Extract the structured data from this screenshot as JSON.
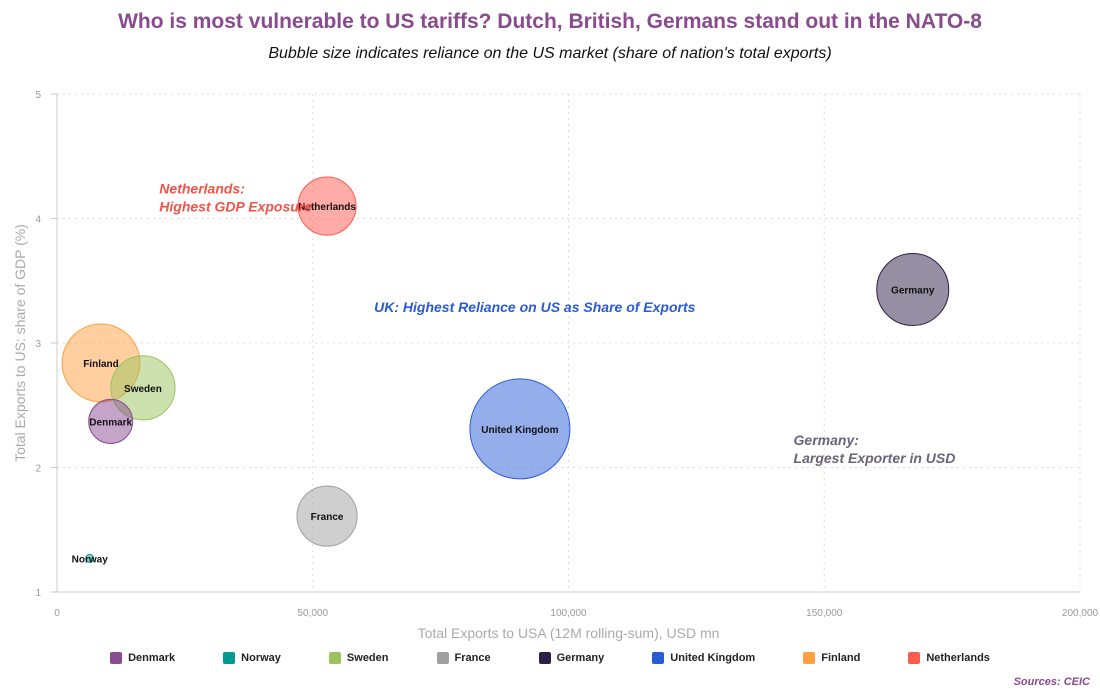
{
  "title": "Who is most vulnerable to US tariffs? Dutch, British, Germans stand out in the NATO-8",
  "subtitle": "Bubble size indicates reliance on the US market (share of nation's total exports)",
  "source": "Sources: CEIC",
  "chart_data": {
    "type": "scatter",
    "subtype": "bubble",
    "xlabel": "Total Exports to USA (12M rolling-sum), USD mn",
    "ylabel": "Total Exports to US: share of GDP (%)",
    "xlim": [
      0,
      200000
    ],
    "ylim": [
      1,
      5
    ],
    "xticks": [
      "0",
      "50,000",
      "100,000",
      "150,000",
      "200,000"
    ],
    "xtick_values": [
      0,
      50000,
      100000,
      150000,
      200000
    ],
    "yticks": [
      "1",
      "2",
      "3",
      "4",
      "5"
    ],
    "ytick_values": [
      1,
      2,
      3,
      4,
      5
    ],
    "grid": true,
    "legend_position": "bottom",
    "series": [
      {
        "name": "Denmark",
        "x": 10500,
        "y": 2.37,
        "size": 3.1,
        "color": "#8a4a92"
      },
      {
        "name": "Norway",
        "x": 6400,
        "y": 1.27,
        "size": 0.1,
        "color": "#009a93"
      },
      {
        "name": "Sweden",
        "x": 16800,
        "y": 2.64,
        "size": 6.6,
        "color": "#9cc45e"
      },
      {
        "name": "France",
        "x": 52800,
        "y": 1.61,
        "size": 5.8,
        "color": "#a0a0a0"
      },
      {
        "name": "Germany",
        "x": 167300,
        "y": 3.43,
        "size": 8.3,
        "color": "#2e1f47"
      },
      {
        "name": "United Kingdom",
        "x": 90500,
        "y": 2.31,
        "size": 16.0,
        "color": "#2a5bd7"
      },
      {
        "name": "Finland",
        "x": 8600,
        "y": 2.84,
        "size": 9.7,
        "color": "#ff9f40"
      },
      {
        "name": "Netherlands",
        "x": 52800,
        "y": 4.1,
        "size": 5.4,
        "color": "#ff5a4e"
      }
    ],
    "annotations": [
      {
        "lines": [
          "Netherlands:",
          "Highest GDP Exposure"
        ],
        "color": "#f5524a",
        "x": 20000,
        "y": 4.2
      },
      {
        "lines": [
          "UK: Highest Reliance on US as Share of Exports"
        ],
        "color": "#2a5bd7",
        "x": 62000,
        "y": 3.25
      },
      {
        "lines": [
          "Germany:",
          "Largest Exporter in USD"
        ],
        "color": "#6b6478",
        "x": 144000,
        "y": 2.18
      }
    ]
  }
}
